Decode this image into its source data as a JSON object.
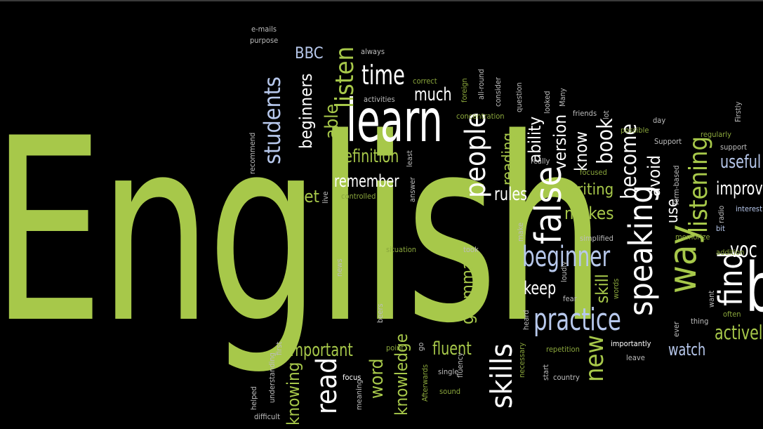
{
  "cloud": {
    "main_word": "English",
    "words": {
      "learn": "learn",
      "time": "time",
      "listen": "listen",
      "students": "students",
      "bbc": "BBC",
      "beginners": "beginners",
      "able": "able",
      "much": "much",
      "people": "people",
      "definition": "definition",
      "remember": "remember",
      "set": "set",
      "false": "false",
      "rules": "rules",
      "writing": "writing",
      "makes": "makes",
      "beginner": "beginner",
      "practice": "practice",
      "keep": "keep",
      "skill": "skill",
      "new": "new",
      "skills": "skills",
      "important": "important",
      "read": "read",
      "word": "word",
      "knowledge": "knowledge",
      "fluent": "fluent",
      "knowing": "knowing",
      "grammar": "grammar",
      "speaking": "speaking",
      "way": "way",
      "find": "find",
      "listening": "listening",
      "watch": "watch",
      "actively": "actively",
      "useful": "useful",
      "improve": "improv",
      "voc": "voc",
      "book": "book",
      "become": "become",
      "avoid": "avoid",
      "use": "use",
      "know": "know",
      "version": "version",
      "ability": "ability",
      "reading": "reading",
      "e_mails": "e-mails",
      "purpose": "purpose",
      "always": "always",
      "correct": "correct",
      "activities": "activities",
      "foreign": "foreign",
      "all_round": "all-round",
      "consider": "consider",
      "question": "question",
      "looked": "looked",
      "many": "Many",
      "friends": "friends",
      "lot": "lot",
      "concentration": "concentration",
      "possible": "possible",
      "day": "day",
      "support_cap": "Support",
      "firstly": "Firstly",
      "regularly": "regularly",
      "support": "support",
      "recommend": "recommend",
      "least": "least",
      "answer": "answer",
      "live": "live",
      "controlled": "controlled",
      "really": "really",
      "focused": "focused",
      "form_based": "form-based",
      "radio": "radio",
      "interest": "interest",
      "bit": "bit",
      "make": "make",
      "simplified": "simplified",
      "memorize": "memorize",
      "addition": "addition",
      "situation": "situation",
      "took": "took",
      "news": "news",
      "loudly": "loudly",
      "fear": "fear",
      "words": "words",
      "want": "want",
      "often": "often",
      "beers": "beers",
      "heard": "heard",
      "ever": "ever",
      "thing": "thing",
      "necessary": "necessary",
      "repetition": "repetition",
      "importantly": "importantly",
      "leave": "leave",
      "start": "start",
      "country": "country",
      "point": "point",
      "go": "go",
      "afterwards": "Afterwards",
      "single": "single",
      "fluency": "fluency",
      "sound": "sound",
      "focus": "focus",
      "meaning": "meaning",
      "first": "first",
      "understanding": "understanding",
      "helped": "helped",
      "difficult": "difficult",
      "b": "b"
    }
  }
}
